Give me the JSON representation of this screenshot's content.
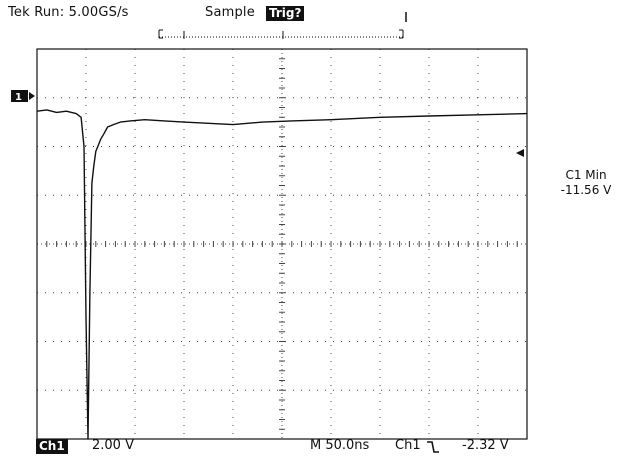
{
  "header": {
    "status": "Tek Run: 5.00GS/s",
    "acq_mode": "Sample",
    "trigger_badge": "Trig?"
  },
  "footer": {
    "ch_badge": "Ch1",
    "volts_per_div": "2.00 V",
    "timebase": "M 50.0ns",
    "trigger_source": "Ch1",
    "trigger_slope_icon": "falling-edge-icon",
    "trigger_level": "-2.32 V"
  },
  "measurement": {
    "label": "C1 Min",
    "value": "-11.56 V"
  },
  "channel_marker": "1",
  "colors": {
    "trace": "#111111",
    "grid": "#444444",
    "background": "#ffffff"
  },
  "chart_data": {
    "type": "line",
    "title": "",
    "xlabel": "",
    "ylabel": "",
    "grid": true,
    "divisions": {
      "x": 10,
      "y": 8
    },
    "x_unit": "ns",
    "y_unit": "V",
    "xlim": [
      0,
      500
    ],
    "ylim": [
      -8,
      8
    ],
    "series": [
      {
        "x": [
          0,
          10,
          20,
          30,
          40,
          45,
          48,
          50,
          52,
          54,
          56,
          58,
          60,
          62,
          65,
          68,
          72,
          78,
          85,
          95,
          110,
          130,
          150,
          175,
          200,
          230,
          260,
          300,
          350,
          400,
          450,
          500
        ],
        "y": [
          5.45,
          5.5,
          5.4,
          5.45,
          5.35,
          5.2,
          4.0,
          -3.0,
          -11.56,
          -2.0,
          2.5,
          3.2,
          3.8,
          4.0,
          4.3,
          4.5,
          4.8,
          4.9,
          5.0,
          5.05,
          5.1,
          5.05,
          5.0,
          4.95,
          4.9,
          5.0,
          5.05,
          5.1,
          5.2,
          5.25,
          5.3,
          5.35
        ]
      }
    ]
  }
}
